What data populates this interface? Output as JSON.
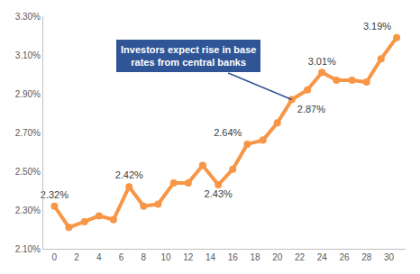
{
  "chart_data": {
    "type": "line",
    "x": [
      0,
      1.3,
      2.7,
      4,
      5.3,
      6.7,
      8,
      9.3,
      10.7,
      12,
      13.3,
      14.7,
      16,
      17.3,
      18.7,
      20,
      21.3,
      22.7,
      24,
      25.3,
      26.7,
      28,
      29.3,
      30.7
    ],
    "values": [
      2.32,
      2.21,
      2.24,
      2.27,
      2.25,
      2.42,
      2.32,
      2.33,
      2.44,
      2.44,
      2.53,
      2.43,
      2.51,
      2.64,
      2.66,
      2.75,
      2.87,
      2.92,
      3.01,
      2.97,
      2.97,
      2.96,
      3.08,
      3.19
    ],
    "value_labels": [
      "2.32%",
      null,
      null,
      null,
      null,
      "2.42%",
      null,
      null,
      null,
      null,
      null,
      "2.43%",
      null,
      "2.64%",
      null,
      null,
      "2.87%",
      null,
      "3.01%",
      null,
      null,
      null,
      null,
      "3.19%"
    ],
    "data_labels": true,
    "color": "#f79646",
    "marker": "circle",
    "xlim": [
      -1,
      31.5
    ],
    "xticks": [
      0,
      2,
      4,
      6,
      8,
      10,
      12,
      14,
      16,
      18,
      20,
      22,
      24,
      26,
      28,
      30
    ],
    "ylim": [
      2.1,
      3.3
    ],
    "yticks": [
      {
        "value": 2.1,
        "label": "2.10%"
      },
      {
        "value": 2.3,
        "label": "2.30%"
      },
      {
        "value": 2.5,
        "label": "2.50%"
      },
      {
        "value": 2.7,
        "label": "2.70%"
      },
      {
        "value": 2.9,
        "label": "2.90%"
      },
      {
        "value": 3.1,
        "label": "3.10%"
      },
      {
        "value": 3.3,
        "label": "3.30%"
      }
    ],
    "grid": false,
    "annotations": [
      {
        "lines": [
          "Investors expect rise in base",
          "rates from central banks"
        ],
        "point": 16
      }
    ]
  }
}
